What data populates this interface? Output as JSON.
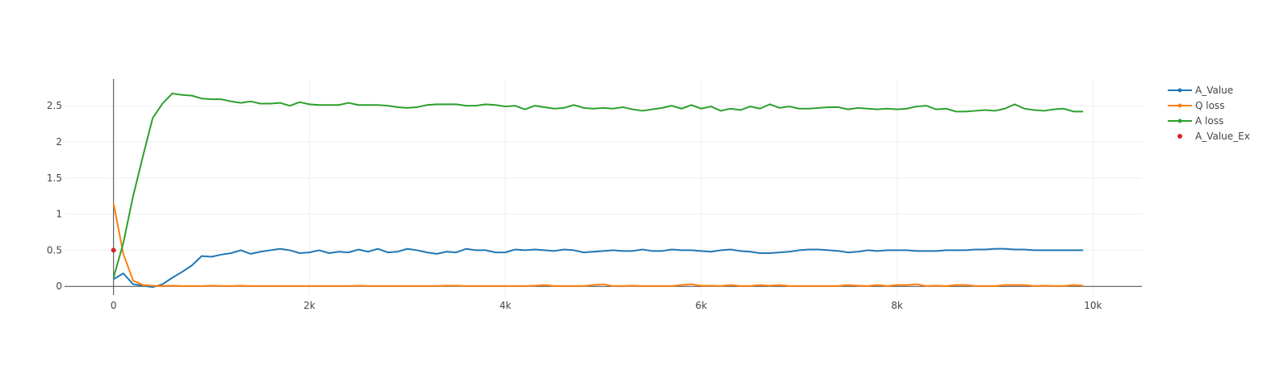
{
  "chart_data": {
    "type": "line",
    "title": "",
    "xlabel": "",
    "ylabel": "",
    "xlim": [
      -500,
      10500
    ],
    "ylim": [
      -0.12,
      2.87
    ],
    "x_ticks": [
      0,
      2000,
      4000,
      6000,
      8000,
      10000
    ],
    "x_tick_labels": [
      "0",
      "2k",
      "4k",
      "6k",
      "8k",
      "10k"
    ],
    "y_ticks": [
      0,
      0.5,
      1,
      1.5,
      2,
      2.5
    ],
    "y_tick_labels": [
      "0",
      "0.5",
      "1",
      "1.5",
      "2",
      "2.5"
    ],
    "grid": true,
    "legend_position": "top-right",
    "x": [
      0,
      100,
      200,
      300,
      400,
      500,
      600,
      700,
      800,
      900,
      1000,
      1100,
      1200,
      1300,
      1400,
      1500,
      1600,
      1700,
      1800,
      1900,
      2000,
      2100,
      2200,
      2300,
      2400,
      2500,
      2600,
      2700,
      2800,
      2900,
      3000,
      3100,
      3200,
      3300,
      3400,
      3500,
      3600,
      3700,
      3800,
      3900,
      4000,
      4100,
      4200,
      4300,
      4400,
      4500,
      4600,
      4700,
      4800,
      4900,
      5000,
      5100,
      5200,
      5300,
      5400,
      5500,
      5600,
      5700,
      5800,
      5900,
      6000,
      6100,
      6200,
      6300,
      6400,
      6500,
      6600,
      6700,
      6800,
      6900,
      7000,
      7100,
      7200,
      7300,
      7400,
      7500,
      7600,
      7700,
      7800,
      7900,
      8000,
      8100,
      8200,
      8300,
      8400,
      8500,
      8600,
      8700,
      8800,
      8900,
      9000,
      9100,
      9200,
      9300,
      9400,
      9500,
      9600,
      9700,
      9800,
      9900
    ],
    "series": [
      {
        "name": "A_Value",
        "color": "#1f77b4",
        "mode": "lines+markers",
        "values": [
          0.1,
          0.18,
          0.03,
          0.01,
          -0.01,
          0.03,
          0.12,
          0.2,
          0.29,
          0.42,
          0.41,
          0.44,
          0.46,
          0.5,
          0.45,
          0.48,
          0.5,
          0.52,
          0.5,
          0.46,
          0.47,
          0.5,
          0.46,
          0.48,
          0.47,
          0.51,
          0.48,
          0.52,
          0.47,
          0.48,
          0.52,
          0.5,
          0.47,
          0.45,
          0.48,
          0.47,
          0.52,
          0.5,
          0.5,
          0.47,
          0.47,
          0.51,
          0.5,
          0.51,
          0.5,
          0.49,
          0.51,
          0.5,
          0.47,
          0.48,
          0.49,
          0.5,
          0.49,
          0.49,
          0.51,
          0.49,
          0.49,
          0.51,
          0.5,
          0.5,
          0.49,
          0.48,
          0.5,
          0.51,
          0.49,
          0.48,
          0.46,
          0.46,
          0.47,
          0.48,
          0.5,
          0.51,
          0.51,
          0.5,
          0.49,
          0.47,
          0.48,
          0.5,
          0.49,
          0.5,
          0.5,
          0.5,
          0.49,
          0.49,
          0.49,
          0.5,
          0.5,
          0.5,
          0.51,
          0.51,
          0.52,
          0.52,
          0.51,
          0.51,
          0.5,
          0.5,
          0.5,
          0.5,
          0.5,
          0.5
        ]
      },
      {
        "name": "Q loss",
        "color": "#ff7f0e",
        "mode": "lines+markers",
        "values": [
          1.15,
          0.45,
          0.08,
          0.02,
          0.01,
          0.005,
          0.01,
          0.005,
          0.005,
          0.005,
          0.01,
          0.005,
          0.005,
          0.01,
          0.005,
          0.005,
          0.005,
          0.005,
          0.005,
          0.005,
          0.005,
          0.005,
          0.005,
          0.005,
          0.005,
          0.01,
          0.005,
          0.005,
          0.005,
          0.005,
          0.005,
          0.005,
          0.005,
          0.005,
          0.01,
          0.01,
          0.005,
          0.005,
          0.005,
          0.005,
          0.005,
          0.005,
          0.005,
          0.01,
          0.02,
          0.005,
          0.005,
          0.005,
          0.005,
          0.02,
          0.03,
          0.005,
          0.005,
          0.01,
          0.005,
          0.005,
          0.005,
          0.005,
          0.02,
          0.03,
          0.01,
          0.01,
          0.005,
          0.02,
          0.005,
          0.005,
          0.02,
          0.01,
          0.02,
          0.005,
          0.005,
          0.005,
          0.005,
          0.005,
          0.005,
          0.02,
          0.01,
          0.005,
          0.02,
          0.005,
          0.02,
          0.02,
          0.03,
          0.005,
          0.01,
          0.005,
          0.02,
          0.02,
          0.005,
          0.005,
          0.005,
          0.02,
          0.02,
          0.02,
          0.005,
          0.01,
          0.005,
          0.005,
          0.02,
          0.01
        ]
      },
      {
        "name": "A loss",
        "color": "#2ca02c",
        "mode": "lines+markers",
        "values": [
          0.12,
          0.6,
          1.25,
          1.8,
          2.33,
          2.53,
          2.67,
          2.65,
          2.64,
          2.6,
          2.59,
          2.59,
          2.56,
          2.54,
          2.56,
          2.53,
          2.53,
          2.54,
          2.5,
          2.55,
          2.52,
          2.51,
          2.51,
          2.51,
          2.54,
          2.51,
          2.51,
          2.51,
          2.5,
          2.48,
          2.47,
          2.48,
          2.51,
          2.52,
          2.52,
          2.52,
          2.5,
          2.5,
          2.52,
          2.51,
          2.49,
          2.5,
          2.45,
          2.5,
          2.48,
          2.46,
          2.47,
          2.51,
          2.47,
          2.46,
          2.47,
          2.46,
          2.48,
          2.45,
          2.43,
          2.45,
          2.47,
          2.5,
          2.46,
          2.51,
          2.46,
          2.49,
          2.43,
          2.46,
          2.44,
          2.49,
          2.46,
          2.52,
          2.47,
          2.49,
          2.46,
          2.46,
          2.47,
          2.48,
          2.48,
          2.45,
          2.47,
          2.46,
          2.45,
          2.46,
          2.45,
          2.46,
          2.49,
          2.5,
          2.45,
          2.46,
          2.42,
          2.42,
          2.43,
          2.44,
          2.43,
          2.46,
          2.52,
          2.46,
          2.44,
          2.43,
          2.45,
          2.46,
          2.42,
          2.42
        ]
      },
      {
        "name": "A_Value_Ex",
        "color": "#d62728",
        "mode": "markers",
        "points": [
          [
            0,
            0.5
          ]
        ]
      }
    ]
  }
}
